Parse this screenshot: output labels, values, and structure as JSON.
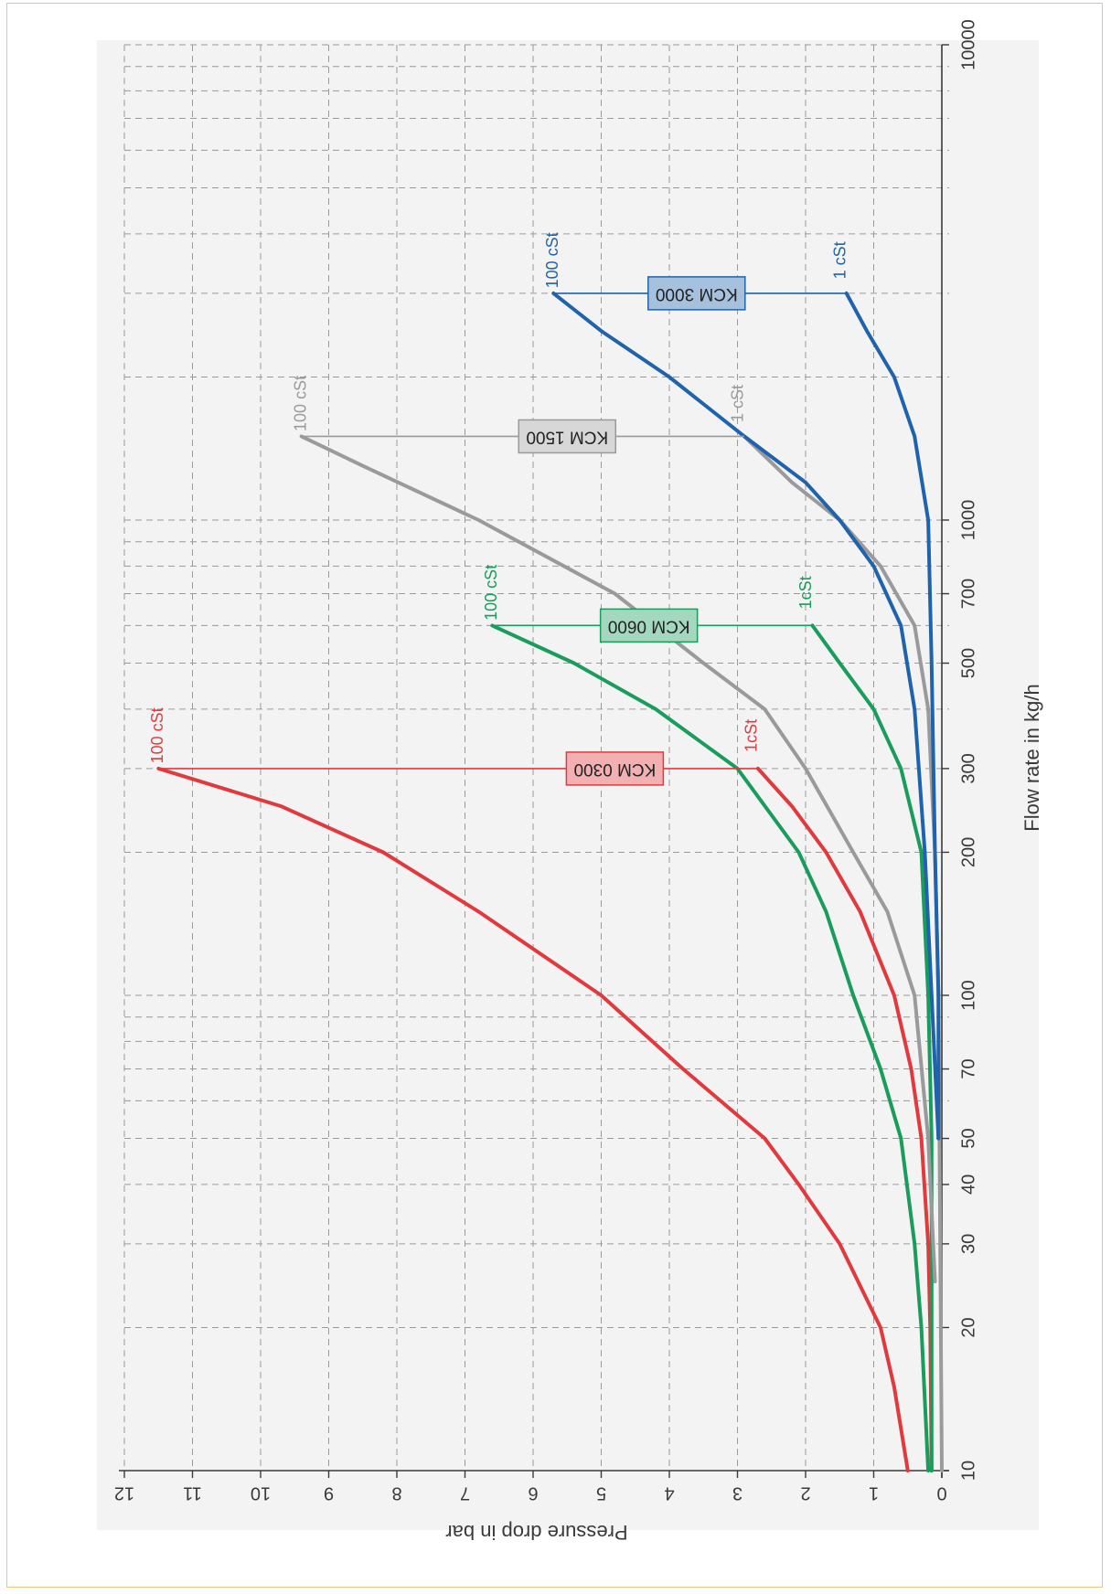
{
  "colors": {
    "KCM 0300": "#e03a3e",
    "KCM 0600": "#1a9c5c",
    "KCM 1500": "#9a9a9c",
    "KCM 3000": "#1f63ad",
    "grid": "#9a9a9a",
    "axis": "#3a3a3a",
    "plot_bg": "#f3f3f3"
  },
  "chart_data": {
    "type": "line",
    "orientation": "rotated 90° (page rotated clockwise)",
    "xlabel": "Flow rate in kg/h",
    "ylabel": "Pressure drop in bar",
    "x_scale": "log",
    "xlim": [
      10,
      10000
    ],
    "ylim": [
      0,
      12
    ],
    "grid": true,
    "x_ticks": [
      "10",
      "20",
      "30",
      "40",
      "50",
      "70",
      "100",
      "200",
      "300",
      "500",
      "700",
      "1000",
      "10000"
    ],
    "y_ticks": [
      "0",
      "1",
      "2",
      "3",
      "4",
      "5",
      "6",
      "7",
      "8",
      "9",
      "10",
      "11",
      "12"
    ],
    "series": [
      {
        "name": "KCM 0300",
        "label": "100 cSt",
        "x": [
          10,
          15,
          20,
          30,
          40,
          50,
          70,
          100,
          150,
          200,
          250,
          300
        ],
        "y": [
          0.5,
          0.7,
          0.9,
          1.5,
          2.1,
          2.6,
          3.8,
          5.0,
          6.8,
          8.2,
          9.7,
          11.5
        ]
      },
      {
        "name": "KCM 0300",
        "label": "1cSt",
        "x": [
          10,
          20,
          30,
          50,
          70,
          100,
          150,
          200,
          250,
          300
        ],
        "y": [
          0.15,
          0.17,
          0.2,
          0.3,
          0.45,
          0.7,
          1.2,
          1.7,
          2.2,
          2.7
        ]
      },
      {
        "name": "KCM 0600",
        "label": "100 cSt",
        "x": [
          10,
          20,
          30,
          50,
          70,
          100,
          150,
          200,
          300,
          400,
          500,
          600
        ],
        "y": [
          0.2,
          0.3,
          0.4,
          0.6,
          0.9,
          1.3,
          1.7,
          2.1,
          3.0,
          4.2,
          5.4,
          6.6
        ]
      },
      {
        "name": "KCM 0600",
        "label": "1cSt",
        "x": [
          10,
          50,
          100,
          200,
          300,
          400,
          500,
          600
        ],
        "y": [
          0.15,
          0.15,
          0.2,
          0.3,
          0.6,
          1.0,
          1.5,
          1.9
        ]
      },
      {
        "name": "KCM 1500",
        "label": "100 cSt",
        "x": [
          25,
          50,
          100,
          150,
          200,
          300,
          400,
          500,
          700,
          1000,
          1300,
          1500
        ],
        "y": [
          0.1,
          0.2,
          0.4,
          0.8,
          1.3,
          2.0,
          2.6,
          3.5,
          4.8,
          6.8,
          8.5,
          9.4
        ]
      },
      {
        "name": "KCM 1500",
        "label": "1 cSt",
        "x": [
          10,
          100,
          200,
          400,
          600,
          800,
          1000,
          1200,
          1500
        ],
        "y": [
          0.0,
          0.05,
          0.1,
          0.2,
          0.4,
          0.9,
          1.5,
          2.2,
          2.9
        ]
      },
      {
        "name": "KCM 3000",
        "label": "100 cSt",
        "x": [
          50,
          100,
          200,
          400,
          600,
          800,
          1000,
          1200,
          1500,
          2000,
          2500,
          3000
        ],
        "y": [
          0.05,
          0.15,
          0.25,
          0.4,
          0.6,
          1.0,
          1.5,
          2.0,
          2.9,
          4.0,
          5.0,
          5.7
        ]
      },
      {
        "name": "KCM 3000",
        "label": "1 cSt",
        "x": [
          50,
          100,
          200,
          500,
          1000,
          1500,
          2000,
          2500,
          3000
        ],
        "y": [
          0.05,
          0.05,
          0.1,
          0.15,
          0.2,
          0.4,
          0.7,
          1.1,
          1.4
        ]
      }
    ],
    "models": [
      {
        "name": "KCM 0300",
        "flow": 300,
        "high_label": "100 cSt",
        "high": 11.5,
        "low_label": "1cSt",
        "low": 2.7,
        "box_value": 4.8
      },
      {
        "name": "KCM 0600",
        "flow": 600,
        "high_label": "100 cSt",
        "high": 6.6,
        "low_label": "1cSt",
        "low": 1.9,
        "box_value": 4.3
      },
      {
        "name": "KCM 1500",
        "flow": 1500,
        "high_label": "100 cSt",
        "high": 9.4,
        "low_label": "1 cSt",
        "low": 2.9,
        "box_value": 5.5
      },
      {
        "name": "KCM 3000",
        "flow": 3000,
        "high_label": "100 cSt",
        "high": 5.7,
        "low_label": "1 cSt",
        "low": 1.4,
        "box_value": 3.6
      }
    ]
  }
}
